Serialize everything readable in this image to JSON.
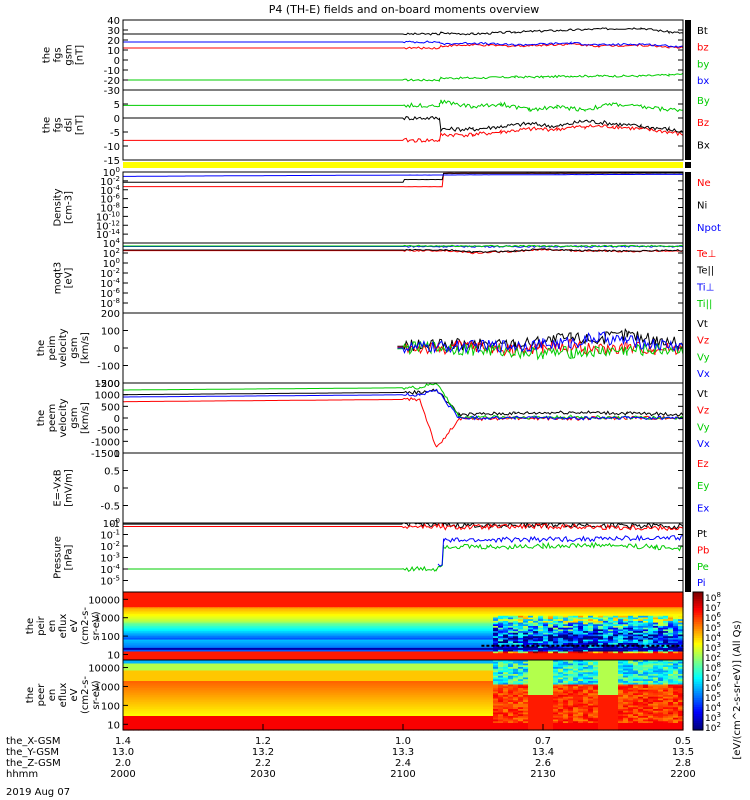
{
  "title": "P4 (TH-E) fields and on-board moments overview",
  "date_label": "2019 Aug 07",
  "chart_data": [
    {
      "type": "line",
      "panel": "fgs_gsm",
      "ylabel": [
        "the",
        "fgs",
        "gsm",
        "[nT]"
      ],
      "ylim": [
        -30,
        40
      ],
      "yticks": [
        -30,
        -20,
        -10,
        0,
        10,
        20,
        30,
        40
      ],
      "grid": false,
      "legend_position": "right",
      "series": [
        {
          "name": "Bt",
          "color": "#000000",
          "x": [
            2000,
            2113,
            2113.5,
            2125,
            2140,
            2150,
            2160,
            2170,
            2185,
            2195,
            2200
          ],
          "y": [
            26,
            26,
            27,
            26,
            28,
            29,
            30,
            31,
            32,
            28,
            27
          ]
        },
        {
          "name": "bz",
          "color": "#ff0000",
          "x": [
            2000,
            2113,
            2113.5,
            2125,
            2140,
            2150,
            2160,
            2170,
            2185,
            2195,
            2200
          ],
          "y": [
            12,
            12,
            14,
            15,
            14,
            15,
            16,
            14,
            15,
            13,
            12
          ]
        },
        {
          "name": "by",
          "color": "#00cc00",
          "x": [
            2000,
            2113,
            2113.5,
            2125,
            2140,
            2150,
            2160,
            2170,
            2185,
            2195,
            2200
          ],
          "y": [
            -20,
            -20,
            -18,
            -18,
            -17,
            -17,
            -16,
            -16,
            -16,
            -15,
            -14
          ]
        },
        {
          "name": "bx",
          "color": "#0000ff",
          "x": [
            2000,
            2113,
            2113.5,
            2125,
            2140,
            2150,
            2160,
            2170,
            2185,
            2195,
            2200
          ],
          "y": [
            18,
            18,
            16,
            17,
            15,
            16,
            17,
            15,
            16,
            14,
            13
          ]
        }
      ]
    },
    {
      "type": "line",
      "panel": "fgs_dsl",
      "ylabel": [
        "the",
        "fgs",
        "dsl",
        "[nT]"
      ],
      "ylim": [
        -15,
        10
      ],
      "yticks": [
        -15,
        -10,
        -5,
        0,
        5
      ],
      "grid": false,
      "legend_position": "right",
      "series": [
        {
          "name": "By",
          "color": "#00cc00",
          "x": [
            2000,
            2113,
            2113.5,
            2125,
            2135,
            2145,
            2155,
            2165,
            2175,
            2185,
            2195,
            2200
          ],
          "y": [
            4.5,
            4.5,
            6,
            4,
            5,
            3,
            4,
            3,
            5,
            4,
            3,
            3
          ]
        },
        {
          "name": "Bz",
          "color": "#ff0000",
          "x": [
            2000,
            2113,
            2113.5,
            2125,
            2135,
            2145,
            2155,
            2165,
            2175,
            2185,
            2195,
            2200
          ],
          "y": [
            -8,
            -8,
            -6,
            -6,
            -5,
            -4,
            -4,
            -3,
            -3,
            -4,
            -5,
            -6
          ]
        },
        {
          "name": "Bx",
          "color": "#000000",
          "x": [
            2000,
            2113,
            2113.5,
            2125,
            2135,
            2145,
            2155,
            2165,
            2175,
            2185,
            2195,
            2200
          ],
          "y": [
            0,
            0,
            -4,
            -4,
            -3,
            -2,
            -3,
            -1,
            -2,
            -3,
            -4,
            -5
          ]
        }
      ]
    },
    {
      "type": "line",
      "panel": "density",
      "yscale": "log",
      "ylabel": [
        "Density",
        "[cm-3]"
      ],
      "ylim": [
        1e-16,
        1
      ],
      "yticks": [
        "10^0",
        "10^-2",
        "10^-4",
        "10^-6",
        "10^-8",
        "10^-10",
        "10^-12",
        "10^-14"
      ],
      "grid": false,
      "legend_position": "right",
      "series": [
        {
          "name": "Ne",
          "color": "#ff0000",
          "x": [
            2000,
            2114,
            2114.5,
            2200
          ],
          "y": [
            0.0005,
            0.0005,
            0.5,
            0.6
          ]
        },
        {
          "name": "Ni",
          "color": "#000000",
          "x": [
            2000,
            2100,
            2100.5,
            2114,
            2114.5,
            2200
          ],
          "y": [
            0.005,
            0.005,
            0.02,
            0.02,
            0.5,
            0.6
          ]
        },
        {
          "name": "Npot",
          "color": "#0000ff",
          "x": [
            2000,
            2200
          ],
          "y": [
            0.1,
            0.3
          ]
        }
      ]
    },
    {
      "type": "line",
      "panel": "temperature",
      "yscale": "log",
      "ylabel": [
        "moqt3",
        "[eV]"
      ],
      "ylim": [
        1e-10,
        10000
      ],
      "yticks": [
        "10^4",
        "10^2",
        "10^0",
        "10^-2",
        "10^-4",
        "10^-6",
        "10^-8"
      ],
      "grid": false,
      "legend_position": "right",
      "series": [
        {
          "name": "Te⊥",
          "color": "#ff0000",
          "x": [
            2000,
            2115,
            2125,
            2140,
            2150,
            2160,
            2180,
            2200
          ],
          "y": [
            300,
            300,
            100,
            200,
            500,
            300,
            200,
            300
          ]
        },
        {
          "name": "Te||",
          "color": "#000000",
          "x": [
            2000,
            2115,
            2125,
            2140,
            2150,
            2160,
            2180,
            2200
          ],
          "y": [
            400,
            400,
            150,
            250,
            600,
            350,
            250,
            350
          ]
        },
        {
          "name": "Ti⊥",
          "color": "#0000ff",
          "x": [
            2000,
            2200
          ],
          "y": [
            2000,
            2000
          ]
        },
        {
          "name": "Ti||",
          "color": "#00cc00",
          "x": [
            2000,
            2200
          ],
          "y": [
            2500,
            2500
          ]
        }
      ]
    },
    {
      "type": "line",
      "panel": "peim_velocity",
      "ylabel": [
        "the",
        "peim",
        "velocity",
        "gsm",
        "[km/s]"
      ],
      "ylim": [
        -200,
        200
      ],
      "yticks": [
        -200,
        -100,
        0,
        100,
        200
      ],
      "grid": false,
      "legend_position": "right",
      "series": [
        {
          "name": "Vt",
          "color": "#000000",
          "x": [
            2098,
            2110,
            2125,
            2140,
            2150,
            2160,
            2170,
            2180,
            2190,
            2200
          ],
          "y": [
            10,
            15,
            20,
            25,
            40,
            60,
            50,
            80,
            45,
            30
          ]
        },
        {
          "name": "Vz",
          "color": "#ff0000",
          "x": [
            2098,
            2110,
            2125,
            2140,
            2150,
            2160,
            2170,
            2180,
            2190,
            2200
          ],
          "y": [
            5,
            -5,
            10,
            -10,
            0,
            15,
            -10,
            5,
            -5,
            0
          ]
        },
        {
          "name": "Vy",
          "color": "#00cc00",
          "x": [
            2098,
            2110,
            2125,
            2140,
            2150,
            2160,
            2170,
            2180,
            2190,
            2200
          ],
          "y": [
            -5,
            5,
            -10,
            -20,
            -30,
            -25,
            -20,
            -15,
            -10,
            -5
          ]
        },
        {
          "name": "Vx",
          "color": "#0000ff",
          "x": [
            2098,
            2110,
            2125,
            2140,
            2150,
            2160,
            2170,
            2180,
            2190,
            2200
          ],
          "y": [
            0,
            5,
            10,
            15,
            20,
            30,
            60,
            40,
            20,
            10
          ]
        }
      ]
    },
    {
      "type": "line",
      "panel": "peem_velocity",
      "ylabel": [
        "the",
        "peem",
        "velocity",
        "gsm",
        "[km/s]"
      ],
      "ylim": [
        -1500,
        1500
      ],
      "yticks": [
        -1500,
        -1000,
        -500,
        0,
        500,
        1000,
        1500
      ],
      "grid": false,
      "legend_position": "right",
      "series": [
        {
          "name": "Vt",
          "color": "#000000",
          "x": [
            2000,
            2106,
            2112,
            2120,
            2140,
            2160,
            2180,
            2200
          ],
          "y": [
            1000,
            1100,
            1200,
            150,
            200,
            250,
            200,
            150
          ]
        },
        {
          "name": "Vz",
          "color": "#ff0000",
          "x": [
            2000,
            2106,
            2112,
            2120,
            2140,
            2160,
            2180,
            2200
          ],
          "y": [
            700,
            800,
            -1300,
            -50,
            0,
            -30,
            20,
            0
          ]
        },
        {
          "name": "Vy",
          "color": "#00cc00",
          "x": [
            2000,
            2106,
            2112,
            2120,
            2140,
            2160,
            2180,
            2200
          ],
          "y": [
            1200,
            1300,
            1500,
            50,
            30,
            40,
            20,
            10
          ]
        },
        {
          "name": "Vx",
          "color": "#0000ff",
          "x": [
            2000,
            2106,
            2112,
            2120,
            2140,
            2160,
            2180,
            2200
          ],
          "y": [
            900,
            1000,
            1200,
            0,
            20,
            -20,
            10,
            0
          ]
        }
      ]
    },
    {
      "type": "line",
      "panel": "e_field",
      "ylabel": [
        "E=-VxB",
        "[mV/m]"
      ],
      "ylim": [
        -1,
        1
      ],
      "yticks": [
        -1.0,
        -0.5,
        0.0,
        0.5,
        1.0
      ],
      "grid": false,
      "legend_position": "right",
      "series": [
        {
          "name": "Ez",
          "color": "#ff0000",
          "x": [],
          "y": []
        },
        {
          "name": "Ey",
          "color": "#00cc00",
          "x": [],
          "y": []
        },
        {
          "name": "Ex",
          "color": "#0000ff",
          "x": [],
          "y": []
        }
      ]
    },
    {
      "type": "line",
      "panel": "pressure",
      "yscale": "log",
      "ylabel": [
        "Pressure",
        "[nPa]"
      ],
      "ylim": [
        1e-06,
        1
      ],
      "yticks": [
        "10^0",
        "10^-1",
        "10^-2",
        "10^-3",
        "10^-4",
        "10^-5"
      ],
      "grid": false,
      "legend_position": "right",
      "series": [
        {
          "name": "Pt",
          "color": "#000000",
          "x": [
            2000,
            2114,
            2114.5,
            2150,
            2180,
            2200
          ],
          "y": [
            0.8,
            0.8,
            0.6,
            0.7,
            0.6,
            0.5
          ]
        },
        {
          "name": "Pb",
          "color": "#ff0000",
          "x": [
            2000,
            2114,
            2114.5,
            2150,
            2180,
            2200
          ],
          "y": [
            0.5,
            0.5,
            0.4,
            0.5,
            0.4,
            0.35
          ]
        },
        {
          "name": "Pe",
          "color": "#00cc00",
          "x": [
            2000,
            2112,
            2114,
            2114.5,
            2130,
            2150,
            2170,
            2190,
            2200
          ],
          "y": [
            0.0001,
            0.0001,
            0.0003,
            0.01,
            0.008,
            0.01,
            0.012,
            0.008,
            0.006
          ]
        },
        {
          "name": "Pi",
          "color": "#0000ff",
          "x": [
            2000,
            2112,
            2112.5,
            2114,
            2114.5,
            2200
          ],
          "y": [
            null,
            null,
            0.0002,
            0.0003,
            0.03,
            0.05
          ]
        }
      ]
    },
    {
      "type": "heatmap",
      "panel": "peir_eflux",
      "ylabel": [
        "the",
        "peir",
        "en",
        "eflux",
        "eV",
        "(cm2-s-",
        "sr-eV)"
      ],
      "yscale": "log",
      "ylim": [
        5,
        25000
      ],
      "yticks": [
        10,
        100,
        1000,
        10000
      ]
    },
    {
      "type": "heatmap",
      "panel": "peer_eflux",
      "ylabel": [
        "the",
        "peer",
        "en",
        "eflux",
        "eV",
        "(cm2-s-",
        "sr-eV)"
      ],
      "yscale": "log",
      "ylim": [
        5,
        25000
      ],
      "yticks": [
        10,
        100,
        1000,
        10000
      ]
    }
  ],
  "colorbar": {
    "label": "[eV/(cm^2-s-sr-eV)] (All Qs)",
    "ticks": [
      "10^8",
      "10^7",
      "10^6",
      "10^5",
      "10^4",
      "10^3",
      "10^2",
      "10^8",
      "10^7",
      "10^6",
      "10^5",
      "10^4",
      "10^3",
      "10^2"
    ]
  },
  "x_axis": {
    "rows": [
      {
        "label": "the_X-GSM",
        "values": [
          "1.4",
          "1.2",
          "1.0",
          "0.7",
          "0.5"
        ]
      },
      {
        "label": "the_Y-GSM",
        "values": [
          "13.0",
          "13.2",
          "13.3",
          "13.4",
          "13.5"
        ]
      },
      {
        "label": "the_Z-GSM",
        "values": [
          "2.0",
          "2.2",
          "2.4",
          "2.6",
          "2.8"
        ]
      },
      {
        "label": "hhmm",
        "values": [
          "2000",
          "2030",
          "2100",
          "2130",
          "2200"
        ]
      }
    ]
  }
}
